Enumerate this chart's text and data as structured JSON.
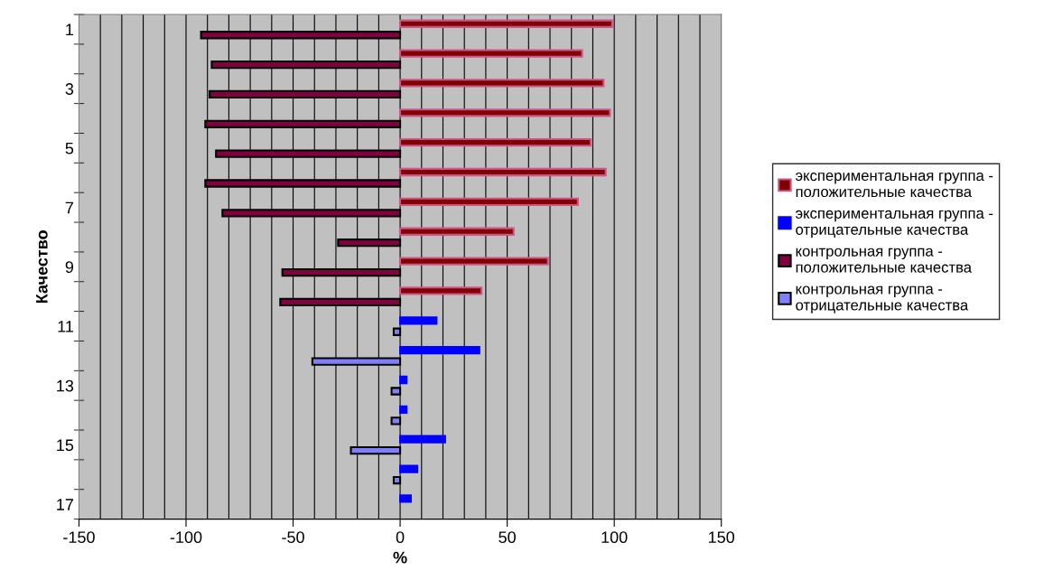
{
  "chart_data": {
    "type": "bar",
    "orientation": "horizontal",
    "xlabel": "%",
    "ylabel": "Качество",
    "categories": [
      "1",
      null,
      "3",
      null,
      "5",
      null,
      "7",
      null,
      "9",
      null,
      "11",
      null,
      "13",
      null,
      "15",
      null,
      "17"
    ],
    "series": [
      {
        "name": "экспериментальная группа - положительные качества",
        "color": "#800000",
        "values": [
          99,
          85,
          95,
          98,
          89,
          96,
          83,
          53,
          69,
          38,
          null,
          null,
          null,
          null,
          null,
          null,
          null
        ]
      },
      {
        "name": "экспериментальная группа - отрицательные качества",
        "color": "#0000ff",
        "values": [
          null,
          null,
          null,
          null,
          null,
          null,
          null,
          null,
          null,
          null,
          17,
          37,
          3,
          3,
          21,
          8,
          5
        ]
      },
      {
        "name": "контрольная группа - положительные качества",
        "color": "#800040",
        "values": [
          -93,
          -88,
          -89,
          -91,
          -86,
          -91,
          -83,
          -29,
          -55,
          -56,
          null,
          null,
          null,
          null,
          null,
          null,
          null
        ]
      },
      {
        "name": "контрольная группа - отрицательные качества",
        "color": "#8080ff",
        "values": [
          null,
          null,
          null,
          null,
          null,
          null,
          null,
          null,
          null,
          null,
          -3,
          -41,
          -4,
          -4,
          -23,
          -3,
          null
        ]
      }
    ],
    "xlim": [
      -150,
      150
    ],
    "xticks": [
      -150,
      {
        "value": -140,
        "label": null
      },
      {
        "value": -130,
        "label": null
      },
      {
        "value": -120,
        "label": null
      },
      {
        "value": -110,
        "label": null
      },
      -100,
      {
        "value": -90,
        "label": null
      },
      {
        "value": -80,
        "label": null
      },
      {
        "value": -70,
        "label": null
      },
      {
        "value": -60,
        "label": null
      },
      -50,
      {
        "value": -40,
        "label": null
      },
      {
        "value": -30,
        "label": null
      },
      {
        "value": -20,
        "label": null
      },
      {
        "value": -10,
        "label": null
      },
      0,
      {
        "value": 10,
        "label": null
      },
      {
        "value": 20,
        "label": null
      },
      {
        "value": 30,
        "label": null
      },
      {
        "value": 40,
        "label": null
      },
      50,
      {
        "value": 60,
        "label": null
      },
      {
        "value": 70,
        "label": null
      },
      {
        "value": 80,
        "label": null
      },
      {
        "value": 90,
        "label": null
      },
      100,
      {
        "value": 110,
        "label": null
      },
      {
        "value": 120,
        "label": null
      },
      {
        "value": 130,
        "label": null
      },
      {
        "value": 140,
        "label": null
      },
      150
    ],
    "grid": "x",
    "legend": "right"
  }
}
